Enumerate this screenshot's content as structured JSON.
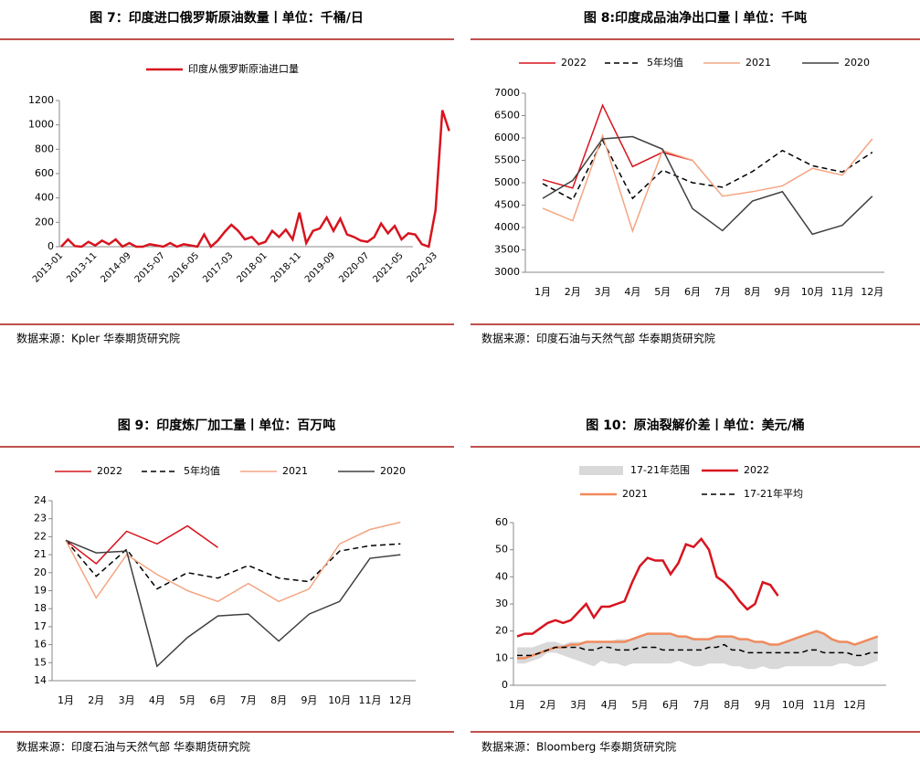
{
  "chart_data": [
    {
      "type": "line",
      "title": "图 7：印度进口俄罗斯原油数量丨单位：千桶/日",
      "source": "数据来源：Kpler  华泰期货研究院",
      "categories": [
        "2013-01",
        null,
        null,
        null,
        null,
        "2013-11",
        null,
        null,
        null,
        null,
        "2014-09",
        null,
        null,
        null,
        null,
        "2015-07",
        null,
        null,
        null,
        null,
        "2016-05",
        null,
        null,
        null,
        null,
        "2017-03",
        null,
        null,
        null,
        null,
        "2018-01",
        null,
        null,
        null,
        null,
        "2018-11",
        null,
        null,
        null,
        null,
        "2019-09",
        null,
        null,
        null,
        null,
        "2020-07",
        null,
        null,
        null,
        null,
        "2021-05",
        null,
        null,
        null,
        null,
        "2022-03",
        null,
        null
      ],
      "series": [
        {
          "name": "印度从俄罗斯原油进口量",
          "color": "#d7141e",
          "values": [
            0,
            60,
            5,
            0,
            40,
            10,
            50,
            20,
            60,
            0,
            30,
            0,
            0,
            20,
            10,
            0,
            30,
            0,
            20,
            10,
            0,
            100,
            0,
            50,
            120,
            180,
            130,
            60,
            80,
            20,
            40,
            130,
            80,
            140,
            60,
            280,
            30,
            130,
            150,
            240,
            130,
            230,
            100,
            80,
            50,
            40,
            80,
            190,
            110,
            170,
            60,
            110,
            100,
            20,
            0,
            300,
            1120,
            950
          ]
        }
      ],
      "ylim": [
        0,
        1200
      ],
      "yticks": [
        0,
        200,
        400,
        600,
        800,
        1000,
        1200
      ]
    },
    {
      "type": "line",
      "title": "图 8:印度成品油净出口量丨单位：千吨",
      "source": "数据来源：印度石油与天然气部  华泰期货研究院",
      "categories": [
        "1月",
        "2月",
        "3月",
        "4月",
        "5月",
        "6月",
        "7月",
        "8月",
        "9月",
        "10月",
        "11月",
        "12月"
      ],
      "series": [
        {
          "name": "2022",
          "color": "#d7141e",
          "values": [
            5070,
            4880,
            6730,
            5360,
            5680,
            5500,
            null,
            null,
            null,
            null,
            null,
            null
          ]
        },
        {
          "name": "5年均值",
          "color": "#000000",
          "dash": true,
          "values": [
            4980,
            4620,
            5950,
            4650,
            5280,
            5000,
            4900,
            5250,
            5720,
            5380,
            5240,
            5680
          ]
        },
        {
          "name": "2021",
          "color": "#f4a582",
          "values": [
            4430,
            4150,
            6050,
            3920,
            5720,
            5500,
            4700,
            4800,
            4930,
            5320,
            5170,
            5980
          ]
        },
        {
          "name": "2020",
          "color": "#404040",
          "values": [
            4650,
            5050,
            5980,
            6030,
            5750,
            4420,
            3930,
            4590,
            4800,
            3850,
            4050,
            4700
          ]
        }
      ],
      "ylim": [
        3000,
        7000
      ],
      "yticks": [
        3000,
        3500,
        4000,
        4500,
        5000,
        5500,
        6000,
        6500,
        7000
      ]
    },
    {
      "type": "line",
      "title": "图 9：印度炼厂加工量丨单位：百万吨",
      "source": "数据来源：印度石油与天然气部  华泰期货研究院",
      "categories": [
        "1月",
        "2月",
        "3月",
        "4月",
        "5月",
        "6月",
        "7月",
        "8月",
        "9月",
        "10月",
        "11月",
        "12月"
      ],
      "series": [
        {
          "name": "2022",
          "color": "#d7141e",
          "values": [
            21.8,
            20.5,
            22.3,
            21.6,
            22.6,
            21.4,
            null,
            null,
            null,
            null,
            null,
            null
          ]
        },
        {
          "name": "5年均值",
          "color": "#000000",
          "dash": true,
          "values": [
            21.8,
            19.8,
            21.3,
            19.1,
            20.0,
            19.7,
            20.4,
            19.7,
            19.5,
            21.2,
            21.5,
            21.6
          ]
        },
        {
          "name": "2021",
          "color": "#f4a582",
          "values": [
            21.8,
            18.6,
            21.0,
            19.9,
            19.0,
            18.4,
            19.4,
            18.4,
            19.1,
            21.6,
            22.4,
            22.8
          ]
        },
        {
          "name": "2020",
          "color": "#404040",
          "values": [
            21.8,
            21.1,
            21.2,
            14.8,
            16.4,
            17.6,
            17.7,
            16.2,
            17.7,
            18.4,
            20.8,
            21.0
          ]
        }
      ],
      "ylim": [
        14,
        24
      ],
      "yticks": [
        14,
        15,
        16,
        17,
        18,
        19,
        20,
        21,
        22,
        23,
        24
      ]
    },
    {
      "type": "line",
      "title": "图 10：原油裂解价差丨单位：美元/桶",
      "source": "数据来源：Bloomberg  华泰期货研究院",
      "categories": [
        "1月",
        null,
        null,
        null,
        "2月",
        null,
        null,
        null,
        "3月",
        null,
        null,
        null,
        "4月",
        null,
        null,
        null,
        "5月",
        null,
        null,
        null,
        "6月",
        null,
        null,
        null,
        "7月",
        null,
        null,
        null,
        "8月",
        null,
        null,
        null,
        "9月",
        null,
        null,
        null,
        "10月",
        null,
        null,
        null,
        "11月",
        null,
        null,
        null,
        "12月",
        null,
        null,
        null
      ],
      "band": {
        "name": "17-21年范围",
        "color": "#d9d9d9",
        "low": [
          8,
          8,
          9,
          10,
          12,
          12,
          11,
          10,
          9,
          8,
          7,
          9,
          8,
          8,
          7,
          8,
          8,
          8,
          8,
          8,
          8,
          9,
          8,
          7,
          7,
          8,
          8,
          8,
          7,
          7,
          6,
          6,
          7,
          6,
          6,
          7,
          7,
          7,
          7,
          7,
          7,
          7,
          8,
          8,
          7,
          7,
          8,
          9
        ],
        "high": [
          14,
          14,
          14,
          15,
          16,
          16,
          15,
          16,
          16,
          16,
          16,
          16,
          16,
          17,
          17,
          17,
          18,
          19,
          19,
          19,
          19,
          18,
          18,
          17,
          17,
          17,
          18,
          18,
          18,
          17,
          17,
          16,
          16,
          15,
          15,
          16,
          17,
          18,
          19,
          20,
          19,
          17,
          16,
          16,
          15,
          16,
          17,
          18
        ]
      },
      "series": [
        {
          "name": "2022",
          "color": "#d7141e",
          "width": 2.5,
          "values": [
            18,
            19,
            19,
            21,
            23,
            24,
            23,
            24,
            27,
            30,
            25,
            29,
            29,
            30,
            31,
            38,
            44,
            47,
            46,
            46,
            41,
            45,
            52,
            51,
            54,
            50,
            40,
            38,
            35,
            31,
            28,
            30,
            38,
            37,
            33,
            null,
            null,
            null,
            null,
            null,
            null,
            null,
            null,
            null,
            null,
            null,
            null,
            null
          ]
        },
        {
          "name": "2021",
          "color": "#f08a5d",
          "width": 2.5,
          "values": [
            10,
            10,
            11,
            12,
            13,
            14,
            14,
            15,
            15,
            16,
            16,
            16,
            16,
            16,
            16,
            17,
            18,
            19,
            19,
            19,
            19,
            18,
            18,
            17,
            17,
            17,
            18,
            18,
            18,
            17,
            17,
            16,
            16,
            15,
            15,
            16,
            17,
            18,
            19,
            20,
            19,
            17,
            16,
            16,
            15,
            16,
            17,
            18
          ]
        },
        {
          "name": "17-21年平均",
          "color": "#000000",
          "dash": true,
          "values": [
            11,
            11,
            11,
            12,
            13,
            14,
            14,
            14,
            14,
            13,
            13,
            14,
            14,
            13,
            13,
            13,
            14,
            14,
            14,
            13,
            13,
            13,
            13,
            13,
            13,
            14,
            14,
            15,
            13,
            13,
            12,
            12,
            12,
            12,
            12,
            12,
            12,
            12,
            13,
            13,
            12,
            12,
            12,
            12,
            11,
            11,
            12,
            12
          ]
        }
      ],
      "ylim": [
        0,
        60
      ],
      "yticks": [
        0,
        10,
        20,
        30,
        40,
        50,
        60
      ]
    }
  ]
}
